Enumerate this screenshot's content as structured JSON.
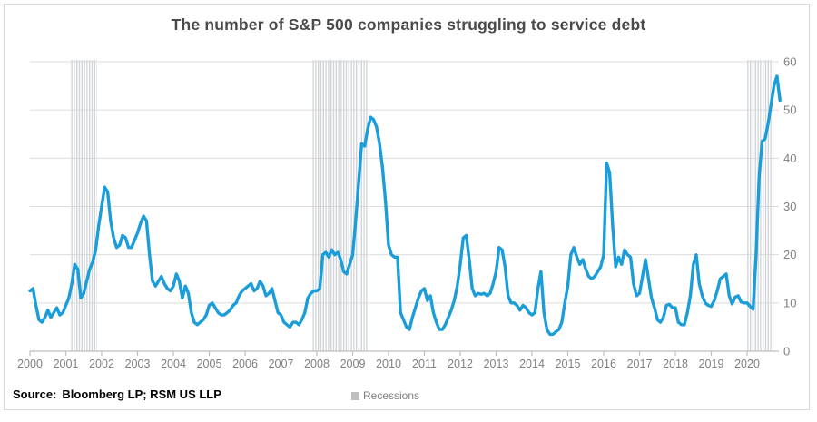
{
  "header": {
    "title": "The number of S&P 500 companies struggling to service debt"
  },
  "footer": {
    "source_label": "Source:",
    "source_text": "Bloomberg LP; RSM US LLP"
  },
  "legend": {
    "items": [
      {
        "label": "Recessions",
        "swatch_color": "#bfbfbf"
      }
    ]
  },
  "colors": {
    "line": "#1b9dd9",
    "gridline": "#dcdcdc",
    "axis": "#bfbfbf",
    "tick_label": "#808080",
    "recession_stripe": "#cfd2d6",
    "card_border": "#d8d8d8",
    "title_text": "#4a4a4a",
    "source_text": "#000000",
    "legend_text": "#7f7f7f"
  },
  "chart_data": {
    "type": "line",
    "title": "The number of S&P 500 companies struggling to service debt",
    "xlabel": "",
    "ylabel": "",
    "x_start_year": 2000,
    "points_per_year": 12,
    "x_tick_labels": [
      "2000",
      "2001",
      "2002",
      "2003",
      "2004",
      "2005",
      "2006",
      "2007",
      "2008",
      "2009",
      "2010",
      "2011",
      "2012",
      "2013",
      "2014",
      "2015",
      "2016",
      "2017",
      "2018",
      "2019",
      "2020"
    ],
    "y_ticks": [
      0,
      10,
      20,
      30,
      40,
      50,
      60
    ],
    "ylim": [
      0,
      60
    ],
    "xlim": [
      2000,
      2020.95
    ],
    "grid": true,
    "y_axis_side": "right",
    "legend_position": "bottom-center",
    "recession_bands_years": [
      [
        2001.13,
        2001.87
      ],
      [
        2007.87,
        2009.47
      ],
      [
        2020.0,
        2020.68
      ]
    ],
    "series": [
      {
        "name": "Number of S&P 500 companies struggling to service debt",
        "monthly_values": [
          12.5,
          13,
          9.5,
          6.5,
          6,
          7,
          8.5,
          7,
          8,
          9,
          7.5,
          8,
          9.5,
          11,
          14,
          18,
          17,
          11,
          12,
          14.5,
          17,
          18.5,
          21,
          26,
          30,
          34,
          33,
          27,
          23.5,
          21.5,
          22,
          24,
          23.5,
          21.5,
          21.5,
          23,
          24.5,
          26.5,
          28,
          27,
          20,
          14.5,
          13.5,
          14.5,
          15.5,
          14,
          13,
          12.5,
          13.5,
          16,
          14.5,
          11,
          13.5,
          12,
          8,
          6,
          5.5,
          6,
          6.5,
          7.5,
          9.5,
          10,
          9,
          8,
          7.5,
          7.5,
          8,
          8.5,
          9.5,
          10,
          11.5,
          12.5,
          13,
          13.5,
          14,
          12.5,
          13,
          14.5,
          13.5,
          11.5,
          12,
          13,
          10.5,
          8,
          7.5,
          6,
          5.5,
          5,
          6,
          6,
          5.5,
          6.5,
          8,
          11,
          12,
          12.5,
          12.5,
          13,
          20,
          20.5,
          19.5,
          21,
          20,
          20.5,
          19,
          16.5,
          16,
          18,
          20,
          27,
          35,
          43,
          42.5,
          46,
          48.5,
          48,
          46.5,
          43,
          38,
          31,
          22,
          20,
          19.5,
          19.5,
          8,
          6.5,
          5,
          4.5,
          7,
          9,
          11,
          12.5,
          13,
          10.5,
          11.5,
          8,
          6,
          4.5,
          4.5,
          5.5,
          7,
          8.5,
          10.5,
          13.5,
          18,
          23.5,
          24,
          19,
          13,
          11.5,
          12,
          11.8,
          12,
          11.5,
          12,
          14,
          16.5,
          21.5,
          21,
          17.5,
          11.5,
          10,
          10,
          9.5,
          8.5,
          9.5,
          9,
          8,
          7.5,
          8,
          13,
          16.5,
          8,
          4.5,
          3.5,
          3.5,
          4,
          4.5,
          6,
          10,
          13.5,
          20,
          21.5,
          19.5,
          18,
          19,
          17,
          15.5,
          15,
          15.5,
          16.5,
          17.5,
          20,
          39,
          37,
          26,
          17.5,
          19.5,
          18,
          21,
          20,
          19.5,
          14,
          11.5,
          12,
          15.5,
          19,
          15,
          11,
          9,
          6.5,
          6,
          7,
          9.5,
          9.7,
          9,
          9,
          6,
          5.5,
          5.5,
          8,
          11.5,
          18,
          20,
          14,
          11.5,
          10,
          9.5,
          9.3,
          10.5,
          12.5,
          15,
          15.5,
          16,
          11.5,
          9.8,
          11.2,
          11.5,
          10.2,
          10,
          10,
          9.3,
          8.7,
          20,
          36,
          43.5,
          44,
          47,
          51,
          55,
          57,
          52
        ]
      }
    ]
  }
}
